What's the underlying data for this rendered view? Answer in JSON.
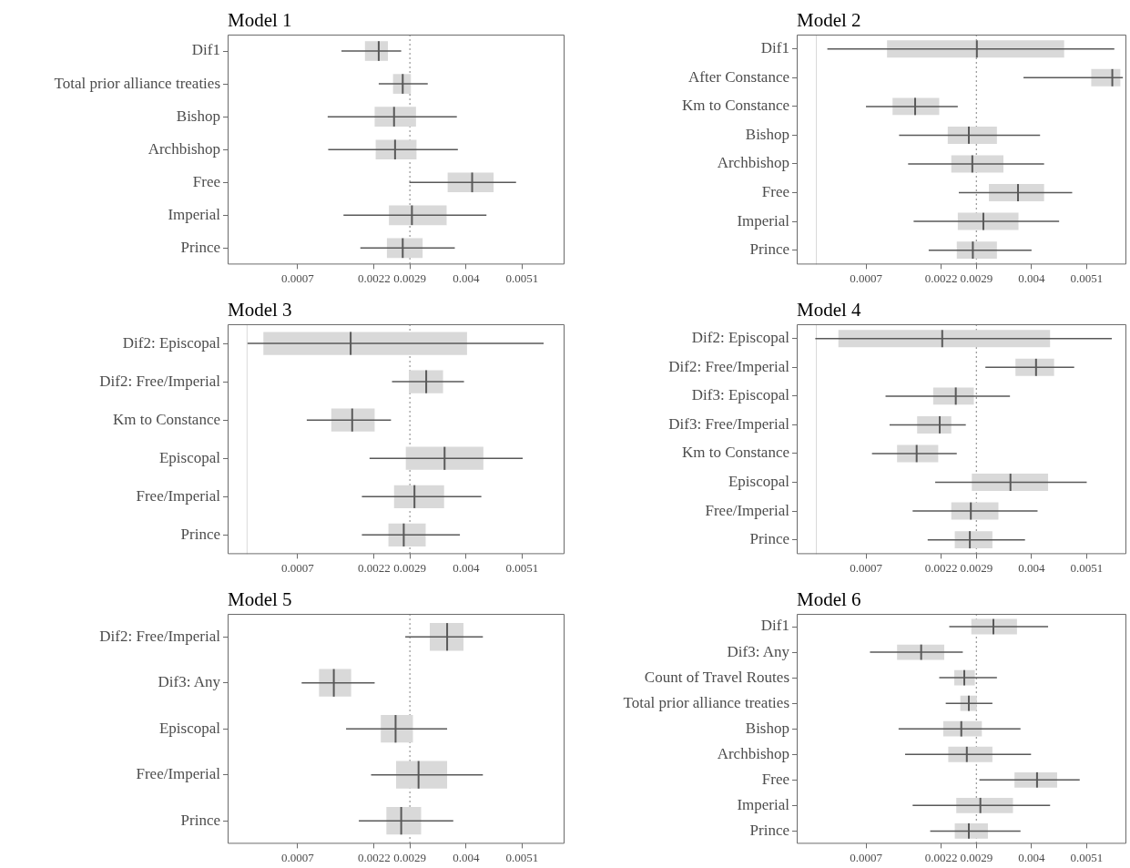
{
  "chart_data": [
    {
      "type": "box",
      "title": "Model 1",
      "orientation": "horizontal",
      "grid": false,
      "categories": [
        "Dif1",
        "Total prior alliance treaties",
        "Bishop",
        "Archbishop",
        "Free",
        "Imperial",
        "Prince"
      ],
      "xlim": [
        -0.00067,
        0.00593
      ],
      "xticks": [
        0.0007,
        0.0022,
        0.0029,
        0.004,
        0.0051
      ],
      "ref_lines": [
        {
          "axis": "x",
          "value": 0.0029,
          "color": "#808080",
          "line_style": "dotted"
        }
      ],
      "series": [
        {
          "color": "#d9d9d9",
          "boxes": [
            {
              "low": 0.00156,
              "q1": 0.00202,
              "median": 0.00229,
              "q3": 0.00247,
              "high": 0.00273
            },
            {
              "low": 0.00229,
              "q1": 0.00257,
              "median": 0.00276,
              "q3": 0.00292,
              "high": 0.00325
            },
            {
              "low": 0.00129,
              "q1": 0.00221,
              "median": 0.00259,
              "q3": 0.00302,
              "high": 0.00382
            },
            {
              "low": 0.0013,
              "q1": 0.00223,
              "median": 0.00261,
              "q3": 0.00303,
              "high": 0.00384
            },
            {
              "low": 0.00289,
              "q1": 0.00364,
              "median": 0.00412,
              "q3": 0.00454,
              "high": 0.00498
            },
            {
              "low": 0.0016,
              "q1": 0.00249,
              "median": 0.00294,
              "q3": 0.00362,
              "high": 0.0044
            },
            {
              "low": 0.00193,
              "q1": 0.00245,
              "median": 0.00276,
              "q3": 0.00315,
              "high": 0.00378
            }
          ]
        }
      ]
    },
    {
      "type": "box",
      "title": "Model 2",
      "orientation": "horizontal",
      "grid": false,
      "categories": [
        "Dif1",
        "After Constance",
        "Km to Constance",
        "Bishop",
        "Archbishop",
        "Free",
        "Imperial",
        "Prince"
      ],
      "xlim": [
        -0.00068,
        0.00589
      ],
      "xticks": [
        0.0007,
        0.0022,
        0.0029,
        0.004,
        0.0051
      ],
      "ref_lines": [
        {
          "axis": "x",
          "value": -0.00029,
          "color": "#d9d9d9",
          "line_style": "solid"
        },
        {
          "axis": "x",
          "value": 0.0029,
          "color": "#808080",
          "line_style": "dotted"
        }
      ],
      "series": [
        {
          "color": "#d9d9d9",
          "boxes": [
            {
              "low": -7e-05,
              "q1": 0.00112,
              "median": 0.00291,
              "q3": 0.00465,
              "high": 0.00565
            },
            {
              "low": 0.00384,
              "q1": 0.00519,
              "median": 0.00561,
              "q3": 0.00577,
              "high": 0.00582
            },
            {
              "low": 0.0007,
              "q1": 0.00123,
              "median": 0.00168,
              "q3": 0.00216,
              "high": 0.00253
            },
            {
              "low": 0.00136,
              "q1": 0.00233,
              "median": 0.00275,
              "q3": 0.00331,
              "high": 0.00417
            },
            {
              "low": 0.00154,
              "q1": 0.0024,
              "median": 0.00282,
              "q3": 0.00344,
              "high": 0.00425
            },
            {
              "low": 0.00255,
              "q1": 0.00315,
              "median": 0.00373,
              "q3": 0.00425,
              "high": 0.00481
            },
            {
              "low": 0.00165,
              "q1": 0.00253,
              "median": 0.00304,
              "q3": 0.00374,
              "high": 0.00455
            },
            {
              "low": 0.00195,
              "q1": 0.00251,
              "median": 0.00283,
              "q3": 0.00331,
              "high": 0.004
            }
          ]
        }
      ]
    },
    {
      "type": "box",
      "title": "Model 3",
      "orientation": "horizontal",
      "grid": false,
      "categories": [
        "Dif2: Episcopal",
        "Dif2: Free/Imperial",
        "Km to Constance",
        "Episcopal",
        "Free/Imperial",
        "Prince"
      ],
      "xlim": [
        -0.00067,
        0.00593
      ],
      "xticks": [
        0.0007,
        0.0022,
        0.0029,
        0.004,
        0.0051
      ],
      "ref_lines": [
        {
          "axis": "x",
          "value": -0.00029,
          "color": "#d9d9d9",
          "line_style": "solid"
        },
        {
          "axis": "x",
          "value": 0.0029,
          "color": "#808080",
          "line_style": "dotted"
        }
      ],
      "series": [
        {
          "color": "#d9d9d9",
          "boxes": [
            {
              "low": -0.00028,
              "q1": 3e-05,
              "median": 0.00174,
              "q3": 0.00402,
              "high": 0.00552
            },
            {
              "low": 0.00255,
              "q1": 0.00288,
              "median": 0.00322,
              "q3": 0.00355,
              "high": 0.00396
            },
            {
              "low": 0.00088,
              "q1": 0.00136,
              "median": 0.00177,
              "q3": 0.00221,
              "high": 0.00253
            },
            {
              "low": 0.00211,
              "q1": 0.00282,
              "median": 0.00358,
              "q3": 0.00434,
              "high": 0.00511
            },
            {
              "low": 0.00196,
              "q1": 0.00259,
              "median": 0.00299,
              "q3": 0.00357,
              "high": 0.0043
            },
            {
              "low": 0.00196,
              "q1": 0.00248,
              "median": 0.00278,
              "q3": 0.00321,
              "high": 0.00388
            }
          ]
        }
      ]
    },
    {
      "type": "box",
      "title": "Model 4",
      "orientation": "horizontal",
      "grid": false,
      "categories": [
        "Dif2: Episcopal",
        "Dif2: Free/Imperial",
        "Dif3: Episcopal",
        "Dif3: Free/Imperial",
        "Km to Constance",
        "Episcopal",
        "Free/Imperial",
        "Prince"
      ],
      "xlim": [
        -0.00068,
        0.00589
      ],
      "xticks": [
        0.0007,
        0.0022,
        0.0029,
        0.004,
        0.0051
      ],
      "ref_lines": [
        {
          "axis": "x",
          "value": -0.00029,
          "color": "#d9d9d9",
          "line_style": "solid"
        },
        {
          "axis": "x",
          "value": 0.0029,
          "color": "#808080",
          "line_style": "dotted"
        }
      ],
      "series": [
        {
          "color": "#d9d9d9",
          "boxes": [
            {
              "low": -0.00031,
              "q1": 0.00015,
              "median": 0.00222,
              "q3": 0.00437,
              "high": 0.0056
            },
            {
              "low": 0.00308,
              "q1": 0.00368,
              "median": 0.00409,
              "q3": 0.00445,
              "high": 0.00485
            },
            {
              "low": 0.00109,
              "q1": 0.00204,
              "median": 0.00249,
              "q3": 0.00285,
              "high": 0.00357
            },
            {
              "low": 0.00117,
              "q1": 0.00172,
              "median": 0.00217,
              "q3": 0.0024,
              "high": 0.00269
            },
            {
              "low": 0.00082,
              "q1": 0.00132,
              "median": 0.00171,
              "q3": 0.00214,
              "high": 0.00251
            },
            {
              "low": 0.00208,
              "q1": 0.00281,
              "median": 0.00358,
              "q3": 0.00433,
              "high": 0.0051
            },
            {
              "low": 0.00163,
              "q1": 0.0024,
              "median": 0.00279,
              "q3": 0.00334,
              "high": 0.00412
            },
            {
              "low": 0.00193,
              "q1": 0.00247,
              "median": 0.00277,
              "q3": 0.00322,
              "high": 0.00387
            }
          ]
        }
      ]
    },
    {
      "type": "box",
      "title": "Model 5",
      "orientation": "horizontal",
      "grid": false,
      "categories": [
        "Dif2: Free/Imperial",
        "Dif3: Any",
        "Episcopal",
        "Free/Imperial",
        "Prince"
      ],
      "xlim": [
        -0.00067,
        0.00593
      ],
      "xticks": [
        0.0007,
        0.0022,
        0.0029,
        0.004,
        0.0051
      ],
      "ref_lines": [
        {
          "axis": "x",
          "value": 0.0029,
          "color": "#808080",
          "line_style": "dotted"
        }
      ],
      "series": [
        {
          "color": "#d9d9d9",
          "boxes": [
            {
              "low": 0.00281,
              "q1": 0.00329,
              "median": 0.00363,
              "q3": 0.00395,
              "high": 0.00433
            },
            {
              "low": 0.00078,
              "q1": 0.00112,
              "median": 0.00141,
              "q3": 0.00175,
              "high": 0.00221
            },
            {
              "low": 0.00165,
              "q1": 0.00233,
              "median": 0.00262,
              "q3": 0.00296,
              "high": 0.00363
            },
            {
              "low": 0.00214,
              "q1": 0.00263,
              "median": 0.00307,
              "q3": 0.00363,
              "high": 0.00433
            },
            {
              "low": 0.0019,
              "q1": 0.00244,
              "median": 0.00273,
              "q3": 0.00312,
              "high": 0.00375
            }
          ]
        }
      ]
    },
    {
      "type": "box",
      "title": "Model 6",
      "orientation": "horizontal",
      "grid": false,
      "categories": [
        "Dif1",
        "Dif3: Any",
        "Count of Travel Routes",
        "Total prior alliance treaties",
        "Bishop",
        "Archbishop",
        "Free",
        "Imperial",
        "Prince"
      ],
      "xlim": [
        -0.00068,
        0.00589
      ],
      "xticks": [
        0.0007,
        0.0022,
        0.0029,
        0.004,
        0.0051
      ],
      "ref_lines": [
        {
          "axis": "x",
          "value": 0.0029,
          "color": "#808080",
          "line_style": "dotted"
        }
      ],
      "series": [
        {
          "color": "#d9d9d9",
          "boxes": [
            {
              "low": 0.00236,
              "q1": 0.0028,
              "median": 0.00324,
              "q3": 0.00371,
              "high": 0.00433
            },
            {
              "low": 0.00078,
              "q1": 0.00132,
              "median": 0.0018,
              "q3": 0.00226,
              "high": 0.00263
            },
            {
              "low": 0.00216,
              "q1": 0.00246,
              "median": 0.00266,
              "q3": 0.00287,
              "high": 0.00331
            },
            {
              "low": 0.00229,
              "q1": 0.00258,
              "median": 0.00275,
              "q3": 0.00291,
              "high": 0.00322
            },
            {
              "low": 0.00135,
              "q1": 0.00224,
              "median": 0.0026,
              "q3": 0.00301,
              "high": 0.00378
            },
            {
              "low": 0.00148,
              "q1": 0.00234,
              "median": 0.00271,
              "q3": 0.00322,
              "high": 0.00399
            },
            {
              "low": 0.00296,
              "q1": 0.00366,
              "median": 0.00411,
              "q3": 0.00451,
              "high": 0.00496
            },
            {
              "low": 0.00163,
              "q1": 0.0025,
              "median": 0.00298,
              "q3": 0.00363,
              "high": 0.00437
            },
            {
              "low": 0.00198,
              "q1": 0.00247,
              "median": 0.00275,
              "q3": 0.00313,
              "high": 0.00378
            }
          ]
        }
      ]
    }
  ]
}
